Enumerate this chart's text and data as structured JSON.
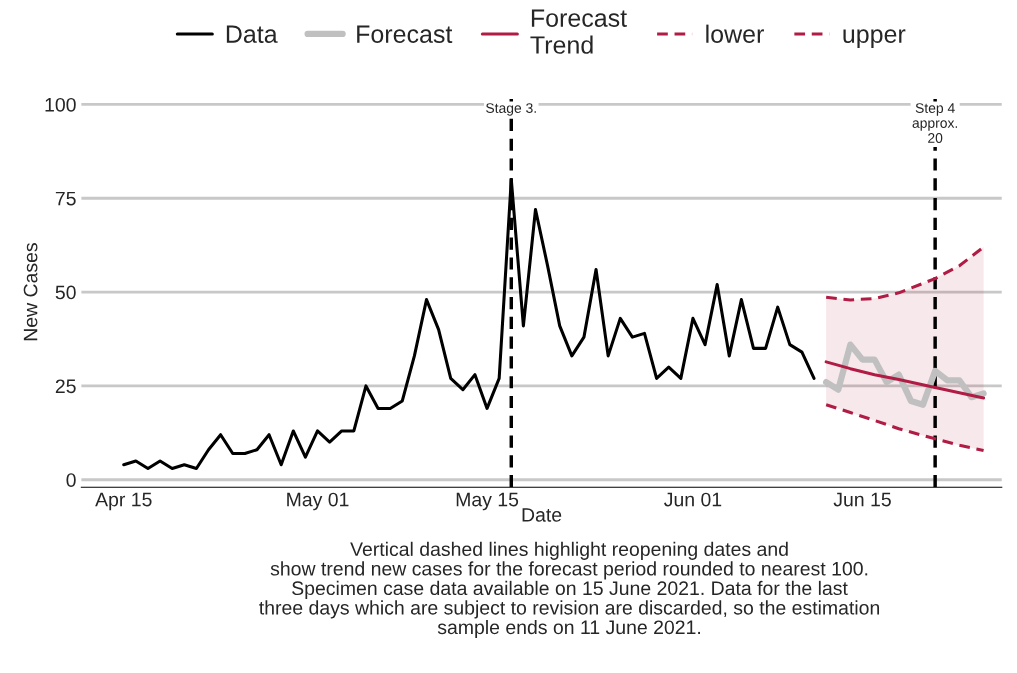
{
  "chart_data": {
    "type": "line",
    "xlabel": "Date",
    "ylabel": "New Cases",
    "xlim": [
      "2021-04-11T12:00",
      "2021-06-26T12:00"
    ],
    "xticks": [
      {
        "value": "2021-04-15",
        "label": "Apr 15"
      },
      {
        "value": "2021-05-01",
        "label": "May 01"
      },
      {
        "value": "2021-05-15",
        "label": "May 15"
      },
      {
        "value": "2021-06-01",
        "label": "Jun 01"
      },
      {
        "value": "2021-06-15",
        "label": "Jun 15"
      }
    ],
    "ylim": [
      -2,
      102
    ],
    "yticks": [
      0,
      25,
      50,
      75,
      100
    ],
    "grid": "y",
    "legend": "top",
    "series": [
      {
        "name": "Data",
        "color": "#000000",
        "line_style": "solid",
        "x": [
          "2021-04-15",
          "2021-04-16",
          "2021-04-17",
          "2021-04-18",
          "2021-04-19",
          "2021-04-20",
          "2021-04-21",
          "2021-04-22",
          "2021-04-23",
          "2021-04-24",
          "2021-04-25",
          "2021-04-26",
          "2021-04-27",
          "2021-04-28",
          "2021-04-29",
          "2021-04-30",
          "2021-05-01",
          "2021-05-02",
          "2021-05-03",
          "2021-05-04",
          "2021-05-05",
          "2021-05-06",
          "2021-05-07",
          "2021-05-08",
          "2021-05-09",
          "2021-05-10",
          "2021-05-11",
          "2021-05-12",
          "2021-05-13",
          "2021-05-14",
          "2021-05-15",
          "2021-05-16",
          "2021-05-17",
          "2021-05-18",
          "2021-05-19",
          "2021-05-20",
          "2021-05-21",
          "2021-05-22",
          "2021-05-23",
          "2021-05-24",
          "2021-05-25",
          "2021-05-26",
          "2021-05-27",
          "2021-05-28",
          "2021-05-29",
          "2021-05-30",
          "2021-05-31",
          "2021-06-01",
          "2021-06-02",
          "2021-06-03",
          "2021-06-04",
          "2021-06-05",
          "2021-06-06",
          "2021-06-07",
          "2021-06-08",
          "2021-06-09",
          "2021-06-10",
          "2021-06-11"
        ],
        "values": [
          4,
          5,
          3,
          5,
          3,
          4,
          3,
          8,
          12,
          7,
          7,
          8,
          12,
          4,
          13,
          6,
          13,
          10,
          13,
          13,
          25,
          19,
          19,
          21,
          33,
          48,
          40,
          27,
          24,
          28,
          19,
          27,
          80,
          41,
          72,
          57,
          41,
          33,
          38,
          56,
          33,
          43,
          38,
          39,
          27,
          30,
          27,
          43,
          36,
          52,
          33,
          48,
          35,
          35,
          46,
          36,
          34,
          27
        ]
      },
      {
        "name": "Forecast",
        "color": "#c0c0c0",
        "line_style": "solid",
        "x": [
          "2021-06-12",
          "2021-06-13",
          "2021-06-14",
          "2021-06-15",
          "2021-06-16",
          "2021-06-17",
          "2021-06-18",
          "2021-06-19",
          "2021-06-20",
          "2021-06-21",
          "2021-06-22",
          "2021-06-23",
          "2021-06-24",
          "2021-06-25"
        ],
        "values": [
          26,
          24,
          36,
          32,
          32,
          26,
          28,
          21,
          20,
          29,
          26.5,
          26.5,
          22,
          23
        ]
      },
      {
        "name": "Forecast\nTrend",
        "color": "#b01c44",
        "line_style": "solid",
        "x": [
          "2021-06-12",
          "2021-06-14",
          "2021-06-16",
          "2021-06-18",
          "2021-06-21",
          "2021-06-23",
          "2021-06-25"
        ],
        "values": [
          31.4,
          29.6,
          28.0,
          26.7,
          24.6,
          23.2,
          21.8
        ],
        "lower": [
          20,
          17.9,
          15.8,
          13.6,
          10.9,
          9.2,
          7.8
        ],
        "upper": [
          48.6,
          47.9,
          48.3,
          49.8,
          53.6,
          57,
          62
        ]
      },
      {
        "name": "lower",
        "color": "#b01c44",
        "line_style": "dashed",
        "x": [
          "2021-06-12",
          "2021-06-14",
          "2021-06-16",
          "2021-06-18",
          "2021-06-21",
          "2021-06-23",
          "2021-06-25"
        ],
        "values": [
          20,
          17.9,
          15.8,
          13.6,
          10.9,
          9.2,
          7.8
        ]
      },
      {
        "name": "upper",
        "color": "#b01c44",
        "line_style": "dashed",
        "x": [
          "2021-06-12",
          "2021-06-14",
          "2021-06-16",
          "2021-06-18",
          "2021-06-21",
          "2021-06-23",
          "2021-06-25"
        ],
        "values": [
          48.6,
          47.9,
          48.3,
          49.8,
          53.6,
          57,
          62
        ]
      }
    ],
    "ref_lines": [
      {
        "axis": "x",
        "value": "2021-05-17",
        "label": "Stage 3.",
        "color": "#000000",
        "line_style": "dashed"
      },
      {
        "axis": "x",
        "value": "2021-06-21",
        "label": "Step 4\napprox.\n20",
        "color": "#000000",
        "line_style": "dashed"
      }
    ],
    "annotations": [
      "Vertical dashed lines highlight reopening dates and\nshow trend new cases for the forecast period rounded to nearest 100.\nSpecimen case data available on 15 June 2021. Data for the last\nthree days which are subject to revision are discarded, so the estimation\nsample ends on 11 June 2021."
    ]
  }
}
